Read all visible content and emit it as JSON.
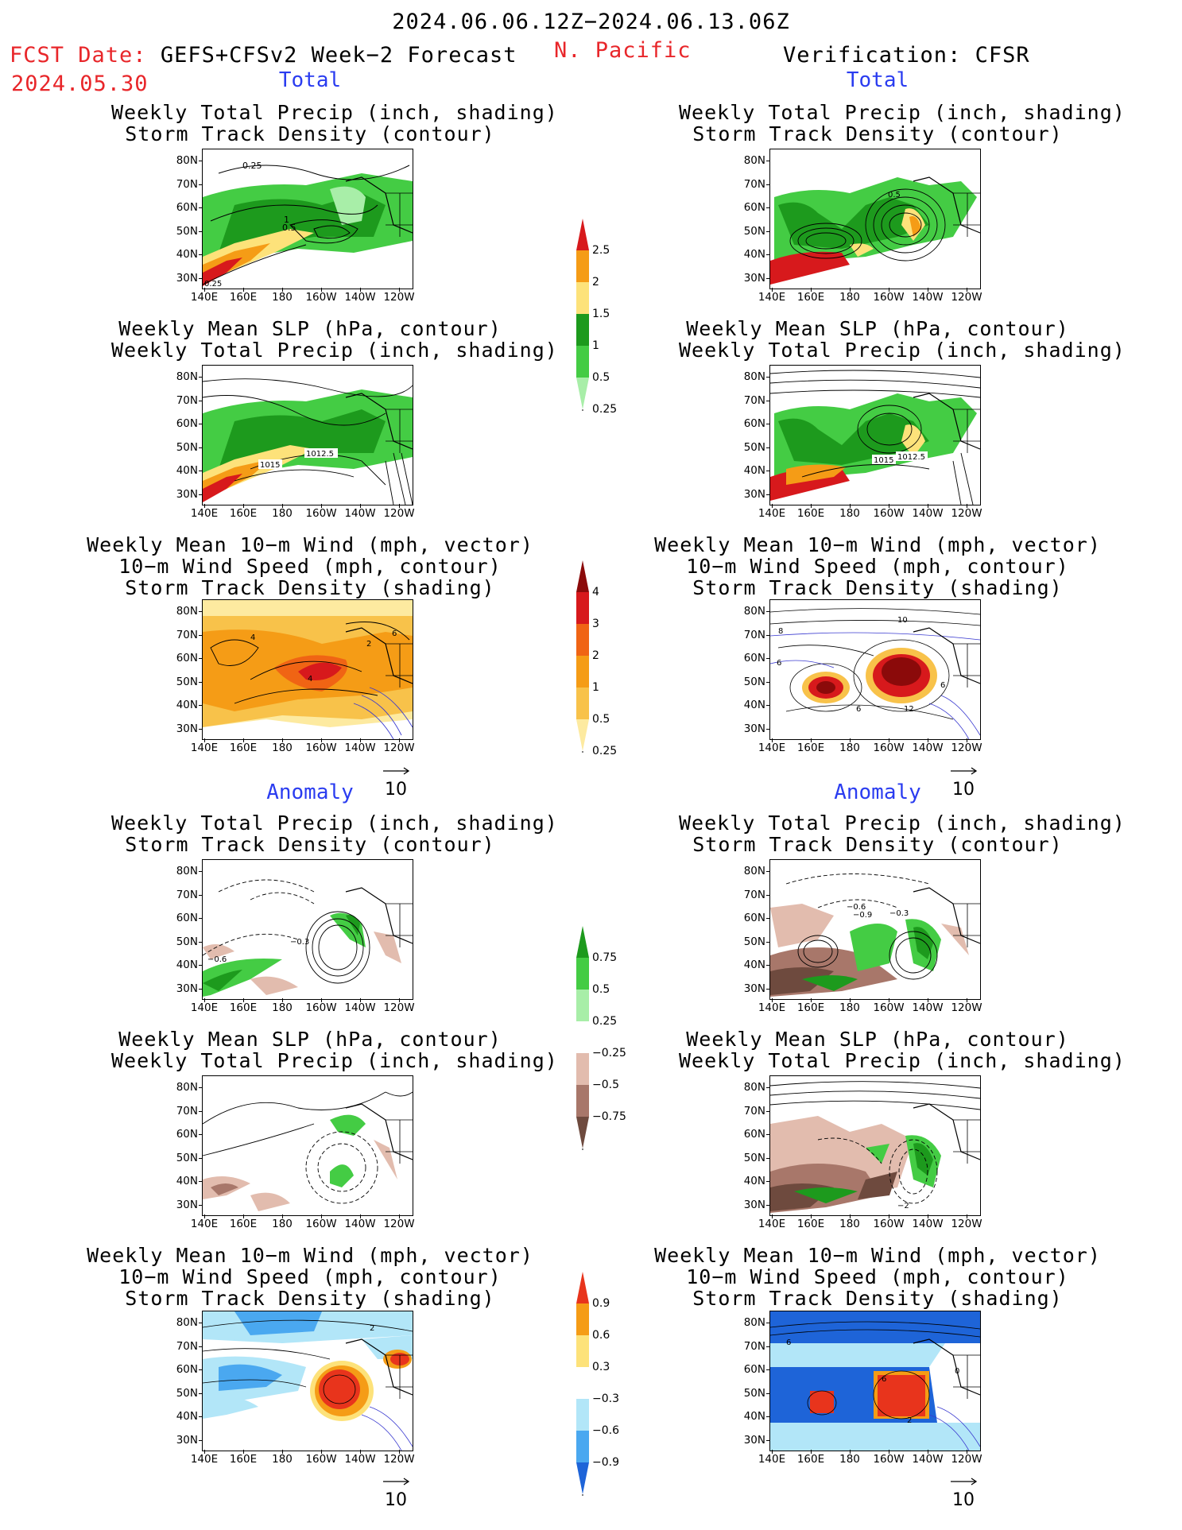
{
  "header": {
    "date_range": "2024.06.06.12Z−2024.06.13.06Z",
    "fcst_prefix": "FCST Date:",
    "fcst_model": "GEFS+CFSv2 Week−2 Forecast",
    "fcst_date": "2024.05.30",
    "region": "N. Pacific",
    "verification": "Verification: CFSR"
  },
  "sections": {
    "total_left": "Total",
    "total_right": "Total",
    "anomaly_left": "Anomaly",
    "anomaly_right": "Anomaly"
  },
  "titles": {
    "precip_track": [
      "Weekly Total Precip (inch, shading)",
      "Storm Track Density (contour)"
    ],
    "slp_precip": [
      "Weekly Mean SLP (hPa, contour)",
      "Weekly Total Precip (inch, shading)"
    ],
    "wind_track": [
      "Weekly Mean 10−m Wind (mph, vector)",
      "10−m Wind Speed (mph, contour)",
      "Storm Track Density (shading)"
    ]
  },
  "map_axes": {
    "lat_labels": [
      "80N",
      "70N",
      "60N",
      "50N",
      "40N",
      "30N"
    ],
    "lon_labels": [
      "140E",
      "160E",
      "180",
      "160W",
      "140W",
      "120W"
    ]
  },
  "vector_reference": "10",
  "colorbars": {
    "precip_total": {
      "labels": [
        "2.5",
        "2",
        "1.5",
        "1",
        "0.5",
        "0.25"
      ],
      "colors": [
        "#d7191c",
        "#f59c16",
        "#fde27a",
        "#1d9a1d",
        "#44cc44",
        "#a8eea8"
      ]
    },
    "track_total": {
      "labels": [
        "4",
        "3",
        "2",
        "1",
        "0.5",
        "0.25"
      ],
      "colors": [
        "#8b0a0a",
        "#d7191c",
        "#f06414",
        "#f59c16",
        "#f8c24a",
        "#fdeaa0"
      ]
    },
    "precip_anom": {
      "labels": [
        "0.75",
        "0.5",
        "0.25",
        "−0.25",
        "−0.5",
        "−0.75"
      ],
      "colors": [
        "#1d9a1d",
        "#44cc44",
        "#a8eea8",
        "#ffffff",
        "#e2bcae",
        "#a8776a",
        "#6e4a3e"
      ]
    },
    "track_anom": {
      "labels": [
        "0.9",
        "0.6",
        "0.3",
        "−0.3",
        "−0.6",
        "−0.9"
      ],
      "colors": [
        "#e8341c",
        "#f59c16",
        "#fde27a",
        "#ffffff",
        "#b2e6f8",
        "#4aa8f0",
        "#1e64d8"
      ]
    }
  },
  "contour_labels": {
    "p1_left": [
      "0.25",
      "1",
      "0.5",
      "0.25"
    ],
    "p1_right": [
      "0.5"
    ],
    "p2_left": [
      "1015",
      "1012.5"
    ],
    "p2_right": [
      "1015",
      "1012.5"
    ],
    "p3_left": [
      "4",
      "4",
      "2",
      "6"
    ],
    "p3_right": [
      "10",
      "8",
      "6",
      "6",
      "6",
      "12"
    ],
    "p4_left": [
      "−0.6",
      "−0.3"
    ],
    "p4_right": [
      "−0.6",
      "−0.9",
      "−0.3"
    ],
    "p5_right": [
      "−2"
    ],
    "p6_left": [
      "2"
    ],
    "p6_right": [
      "6",
      "6",
      "0",
      "2"
    ]
  }
}
